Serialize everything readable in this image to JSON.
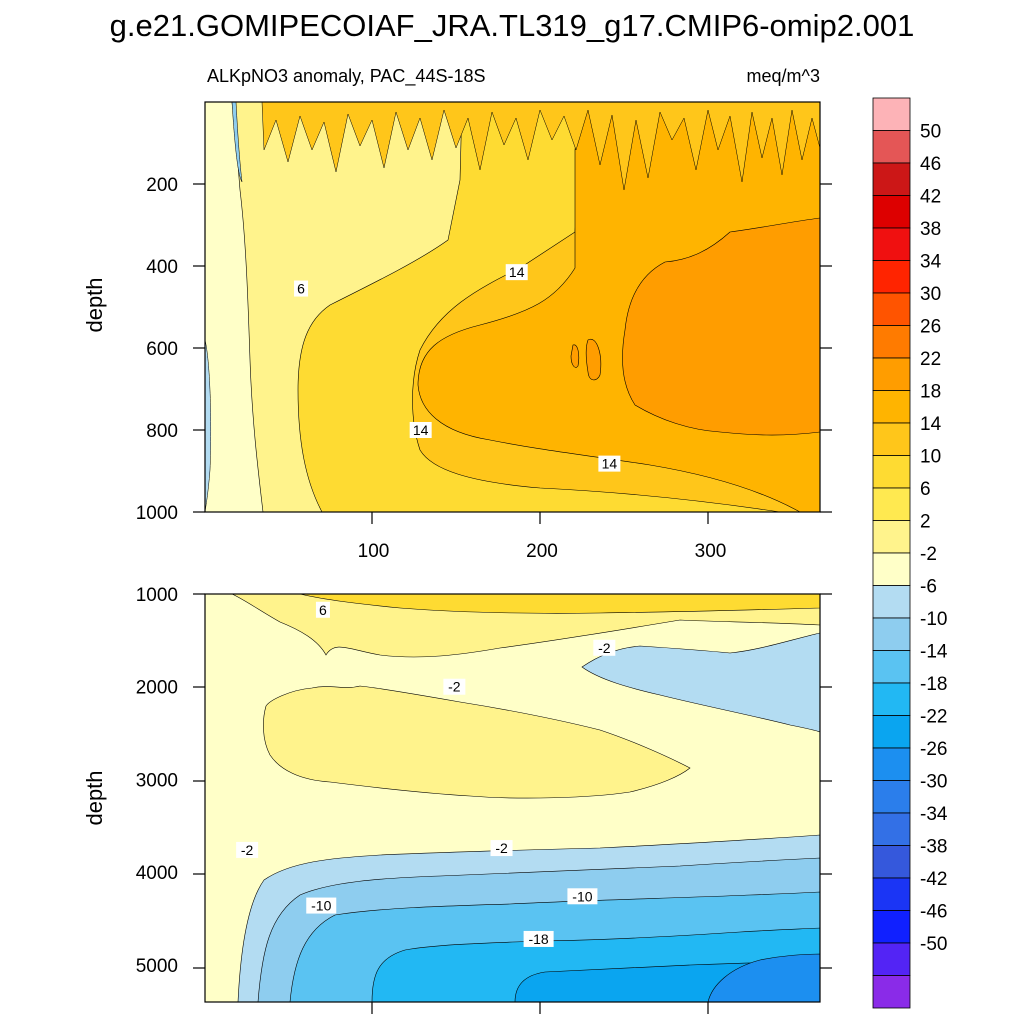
{
  "title": "g.e21.GOMIPECOIAF_JRA.TL319_g17.CMIP6-omip2.001",
  "chart_data": [
    {
      "type": "contour",
      "panel": "upper",
      "title_left": "ALKpNO3 anomaly, PAC_44S-18S",
      "title_right": "meq/m^3",
      "ylabel": "depth",
      "xlim": [
        0,
        365
      ],
      "ylim": [
        0,
        1000
      ],
      "y_inverted": true,
      "x_ticks": [
        100,
        200,
        300
      ],
      "y_ticks": [
        200,
        400,
        600,
        800,
        1000
      ],
      "contour_labels": [
        {
          "text": "6",
          "x": 57,
          "y": 455
        },
        {
          "text": "14",
          "x": 185,
          "y": 415
        },
        {
          "text": "14",
          "x": 128,
          "y": 800
        },
        {
          "text": "14",
          "x": 240,
          "y": 882
        }
      ]
    },
    {
      "type": "contour",
      "panel": "lower",
      "ylabel": "depth",
      "xlim": [
        0,
        365
      ],
      "ylim": [
        1000,
        5400
      ],
      "y_inverted": true,
      "y_ticks": [
        1000,
        2000,
        3000,
        4000,
        5000
      ],
      "contour_labels": [
        {
          "text": "6",
          "x": 70,
          "y": 1170
        },
        {
          "text": "-2",
          "x": 237,
          "y": 1580
        },
        {
          "text": "-2",
          "x": 148,
          "y": 2000
        },
        {
          "text": "-2",
          "x": 25,
          "y": 3760
        },
        {
          "text": "-2",
          "x": 176,
          "y": 3740
        },
        {
          "text": "-10",
          "x": 69,
          "y": 4360
        },
        {
          "text": "-10",
          "x": 224,
          "y": 4260
        },
        {
          "text": "-18",
          "x": 198,
          "y": 4720
        }
      ]
    }
  ],
  "colorbar": {
    "labels": [
      "50",
      "46",
      "42",
      "38",
      "34",
      "30",
      "26",
      "22",
      "18",
      "14",
      "10",
      "6",
      "2",
      "-2",
      "-6",
      "-10",
      "-14",
      "-18",
      "-22",
      "-26",
      "-30",
      "-34",
      "-38",
      "-42",
      "-46",
      "-50"
    ],
    "colors": [
      "#fdb3b7",
      "#e45656",
      "#cc1717",
      "#dd0000",
      "#f01010",
      "#ff2400",
      "#ff5400",
      "#ff7b00",
      "#ff9d00",
      "#ffb400",
      "#ffc61a",
      "#fedb32",
      "#ffe950",
      "#fff38c",
      "#ffffc8",
      "#b3dcf2",
      "#8ecdef",
      "#5ac3f2",
      "#22b8f3",
      "#0aa5f0",
      "#1c8ff0",
      "#2b7eeb",
      "#3370e6",
      "#3558dc",
      "#1b35f5",
      "#1020ff",
      "#5324f5",
      "#8a2be8"
    ]
  }
}
